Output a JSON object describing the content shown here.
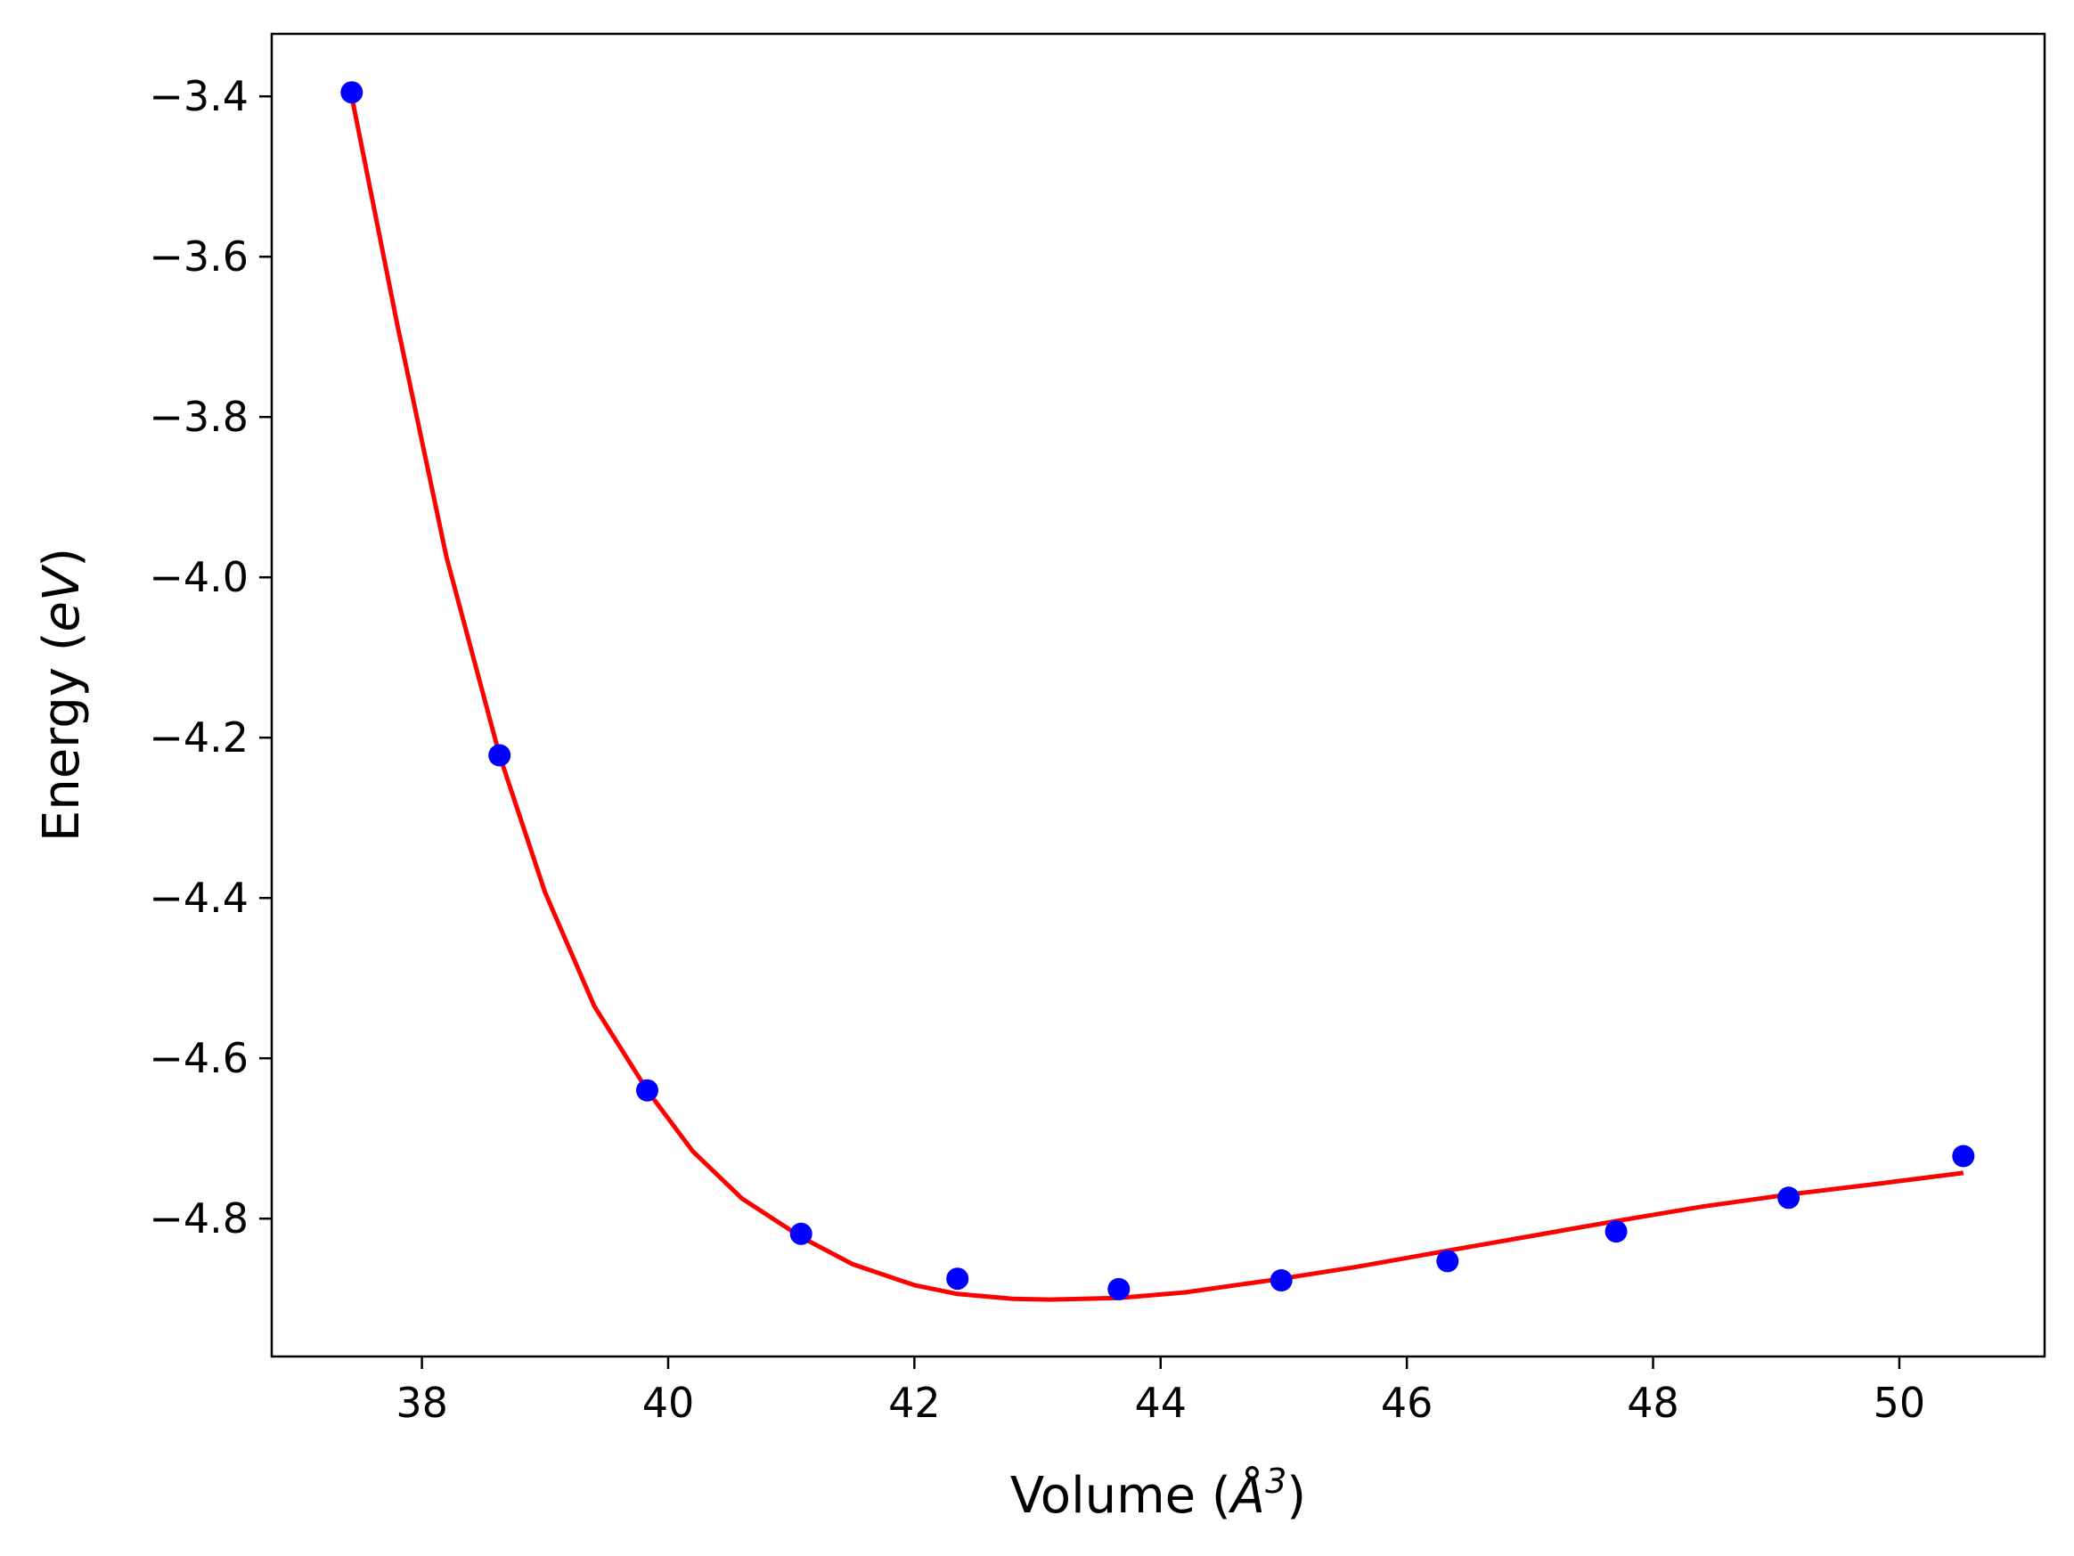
{
  "chart_data": {
    "type": "scatter",
    "title": "",
    "xlabel_main": "Volume (",
    "xlabel_symbol": "Å",
    "xlabel_exp": "3",
    "xlabel_close": ")",
    "ylabel_main": "Energy (",
    "ylabel_unit": "eV",
    "ylabel_close": ")",
    "xlim": [
      36.78,
      51.18
    ],
    "ylim": [
      -4.972,
      -3.322
    ],
    "xticks": [
      38,
      40,
      42,
      44,
      46,
      48,
      50
    ],
    "xtick_labels": [
      "38",
      "40",
      "42",
      "44",
      "46",
      "48",
      "50"
    ],
    "yticks": [
      -4.8,
      -4.6,
      -4.4,
      -4.2,
      -4.0,
      -3.8,
      -3.6,
      -3.4
    ],
    "ytick_labels": [
      "−4.8",
      "−4.6",
      "−4.4",
      "−4.2",
      "−4.0",
      "−3.8",
      "−3.6",
      "−3.4"
    ],
    "grid": false,
    "series": [
      {
        "kind": "points",
        "color": "#0000ff",
        "x": [
          37.43,
          38.63,
          39.83,
          41.08,
          42.35,
          43.66,
          44.98,
          46.33,
          47.7,
          49.1,
          50.52
        ],
        "y": [
          -3.395,
          -4.222,
          -4.64,
          -4.819,
          -4.875,
          -4.888,
          -4.877,
          -4.853,
          -4.816,
          -4.774,
          -4.722
        ]
      },
      {
        "kind": "fit-curve",
        "color": "#ff0000",
        "x": [
          37.43,
          37.8,
          38.2,
          38.63,
          39.0,
          39.4,
          39.83,
          40.2,
          40.6,
          41.08,
          41.5,
          42.0,
          42.35,
          42.8,
          43.1,
          43.66,
          44.2,
          44.98,
          45.6,
          46.33,
          47.0,
          47.7,
          48.4,
          49.1,
          49.8,
          50.52
        ],
        "y": [
          -3.4,
          -3.685,
          -3.975,
          -4.222,
          -4.393,
          -4.535,
          -4.64,
          -4.716,
          -4.775,
          -4.823,
          -4.857,
          -4.883,
          -4.894,
          -4.9,
          -4.901,
          -4.899,
          -4.892,
          -4.875,
          -4.86,
          -4.84,
          -4.822,
          -4.803,
          -4.785,
          -4.77,
          -4.757,
          -4.743
        ]
      }
    ],
    "styles": {
      "axes_color": "#000000",
      "background": "#ffffff"
    }
  }
}
